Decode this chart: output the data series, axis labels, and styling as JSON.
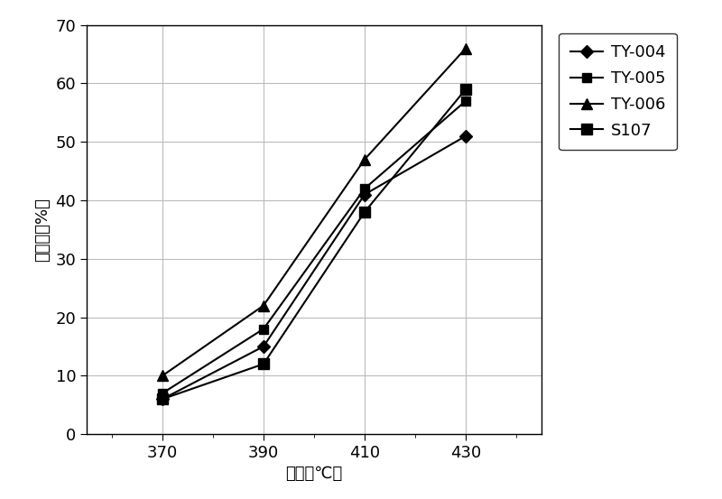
{
  "x": [
    370,
    390,
    410,
    430
  ],
  "series": [
    {
      "label": "TY-004",
      "values": [
        6,
        15,
        41,
        51
      ],
      "marker": "D",
      "color": "#000000",
      "markersize": 7,
      "markerfacecolor": "#000000"
    },
    {
      "label": "TY-005",
      "values": [
        7,
        18,
        42,
        57
      ],
      "marker": "s",
      "color": "#000000",
      "markersize": 7,
      "markerfacecolor": "#000000"
    },
    {
      "label": "TY-006",
      "values": [
        10,
        22,
        47,
        66
      ],
      "marker": "^",
      "color": "#000000",
      "markersize": 8,
      "markerfacecolor": "#000000"
    },
    {
      "label": "S107",
      "values": [
        6,
        12,
        38,
        59
      ],
      "marker": "s",
      "color": "#000000",
      "markersize": 9,
      "markerfacecolor": "#000000"
    }
  ],
  "xlabel": "温度（℃）",
  "ylabel": "转化率（%）",
  "xlim": [
    355,
    445
  ],
  "ylim": [
    0,
    70
  ],
  "yticks": [
    0,
    10,
    20,
    30,
    40,
    50,
    60,
    70
  ],
  "xticks": [
    370,
    390,
    410,
    430
  ],
  "background_color": "#ffffff",
  "legend_fontsize": 13,
  "axis_label_fontsize": 13,
  "tick_fontsize": 13
}
